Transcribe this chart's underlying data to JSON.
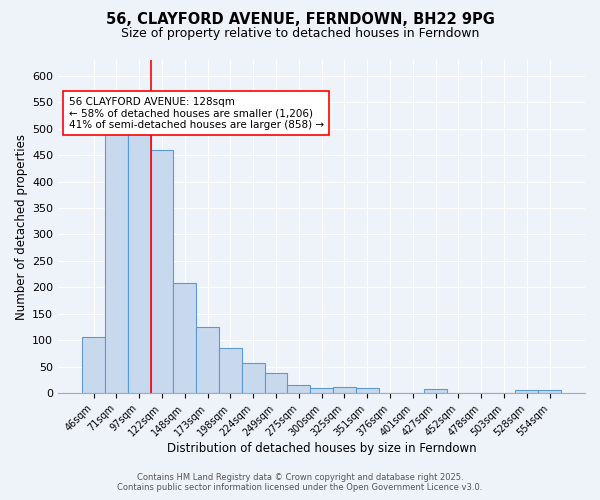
{
  "title": "56, CLAYFORD AVENUE, FERNDOWN, BH22 9PG",
  "subtitle": "Size of property relative to detached houses in Ferndown",
  "xlabel": "Distribution of detached houses by size in Ferndown",
  "ylabel": "Number of detached properties",
  "categories": [
    "46sqm",
    "71sqm",
    "97sqm",
    "122sqm",
    "148sqm",
    "173sqm",
    "198sqm",
    "224sqm",
    "249sqm",
    "275sqm",
    "300sqm",
    "325sqm",
    "351sqm",
    "376sqm",
    "401sqm",
    "427sqm",
    "452sqm",
    "478sqm",
    "503sqm",
    "528sqm",
    "554sqm"
  ],
  "values": [
    107,
    492,
    492,
    460,
    208,
    125,
    85,
    57,
    38,
    15,
    10,
    12,
    10,
    1,
    0,
    7,
    0,
    0,
    0,
    6,
    6
  ],
  "bar_color": "#c9d9ed",
  "bar_edge_color": "#5b9bd5",
  "redline_index": 3,
  "redline_label": "56 CLAYFORD AVENUE: 128sqm",
  "annotation_line1": "← 58% of detached houses are smaller (1,206)",
  "annotation_line2": "41% of semi-detached houses are larger (858) →",
  "ylim": [
    0,
    630
  ],
  "yticks": [
    0,
    50,
    100,
    150,
    200,
    250,
    300,
    350,
    400,
    450,
    500,
    550,
    600
  ],
  "background_color": "#eef2f9",
  "grid_color": "#ffffff",
  "footer_line1": "Contains HM Land Registry data © Crown copyright and database right 2025.",
  "footer_line2": "Contains public sector information licensed under the Open Government Licence v3.0."
}
